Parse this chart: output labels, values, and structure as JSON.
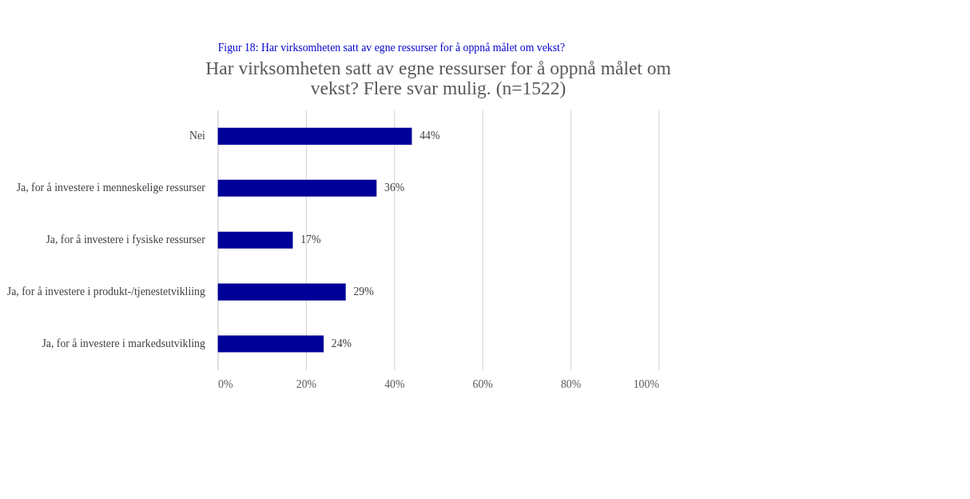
{
  "chart_data": {
    "type": "bar",
    "orientation": "horizontal",
    "title": [
      "Har virksomheten satt av egne ressurser for å oppnå målet om",
      "vekst? Flere svar mulig. (n=1522)"
    ],
    "annotations": [
      "Figur 18: Har virksomheten satt av egne ressurser for å oppnå målet om vekst?"
    ],
    "categories": [
      "Nei",
      "Ja, for å investere i menneskelige ressurser",
      "Ja, for å investere i fysiske ressurser",
      "Ja, for å investere i produkt-/tjenestetvikliing",
      "Ja, for å investere i markedsutvikling"
    ],
    "values": [
      44,
      36,
      17,
      29,
      24
    ],
    "color": "#000099",
    "xlim": [
      0,
      100
    ],
    "xticks": [
      {
        "value": 0,
        "label": "0%"
      },
      {
        "value": 20,
        "label": "20%"
      },
      {
        "value": 40,
        "label": "40%"
      },
      {
        "value": 60,
        "label": "60%"
      },
      {
        "value": 80,
        "label": "80%"
      },
      {
        "value": 100,
        "label": "100%"
      }
    ],
    "value_labels": [
      "44%",
      "36%",
      "17%",
      "29%",
      "24%"
    ],
    "grid": "x"
  }
}
